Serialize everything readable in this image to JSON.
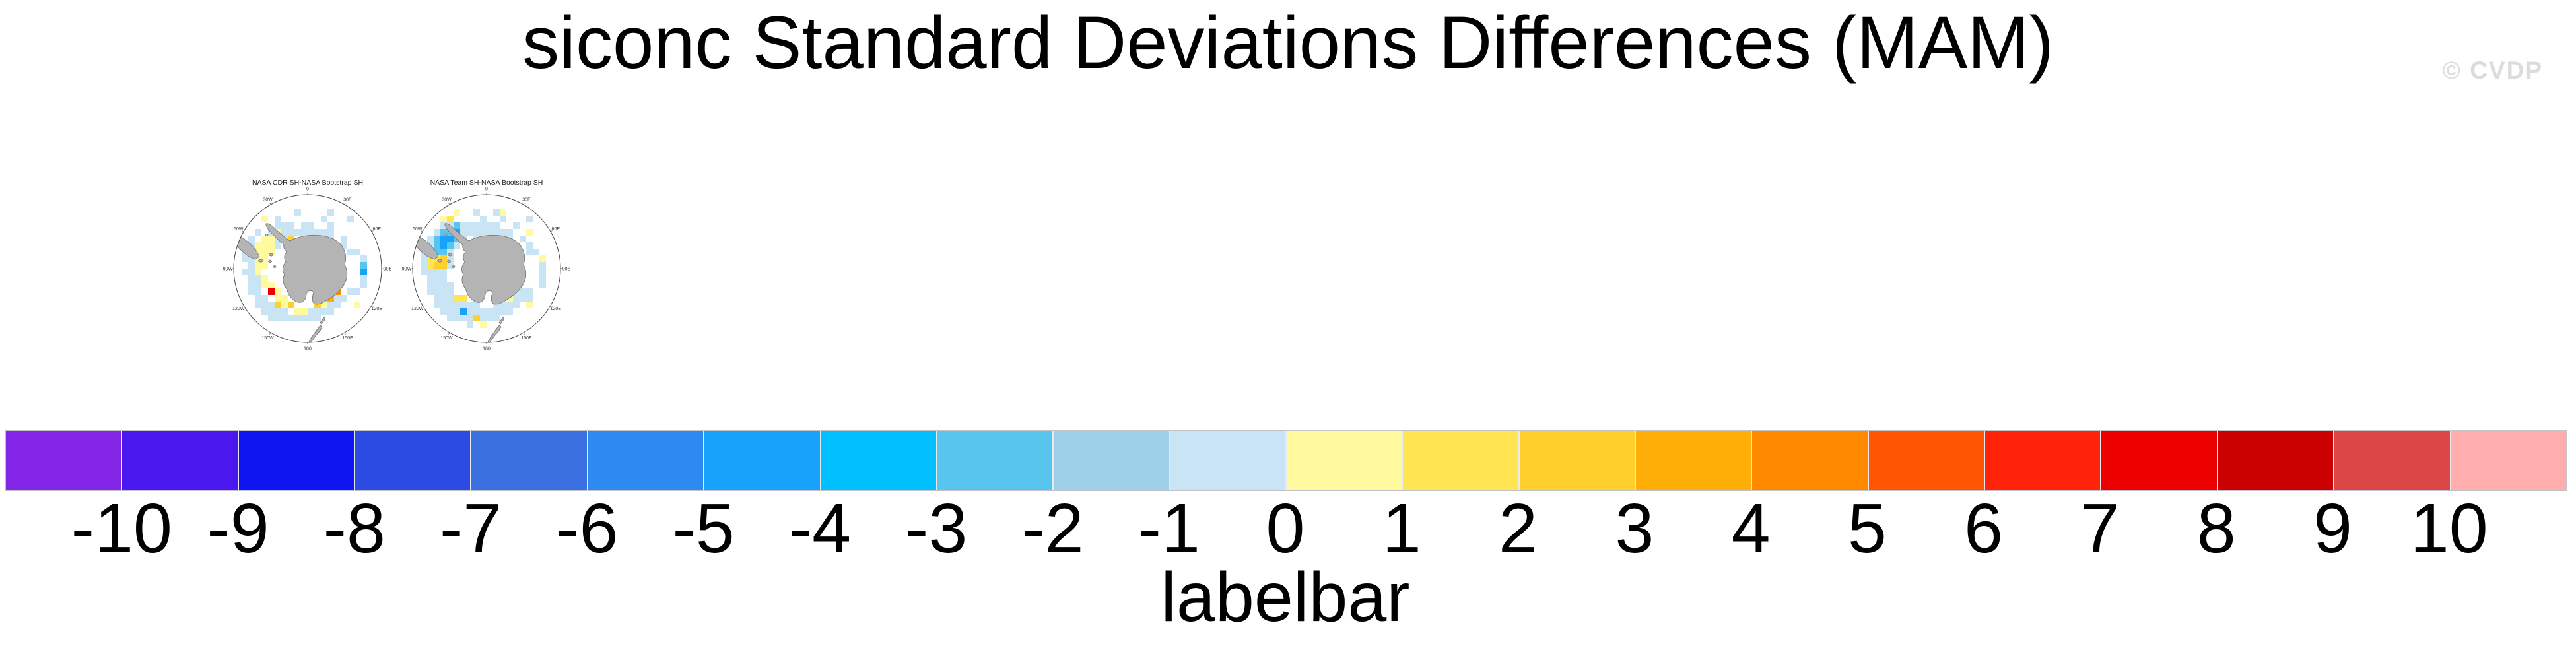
{
  "page": {
    "title": "siconc Standard Deviations Differences (MAM)",
    "watermark": "© CVDP"
  },
  "chart_data": {
    "type": "heatmap",
    "title": "siconc Standard Deviations Differences (MAM)",
    "season": "MAM",
    "variable": "siconc",
    "panels": [
      {
        "title": "NASA CDR SH-NASA Bootstrap SH",
        "projection": "south polar stereographic",
        "ring_labels": [
          "0",
          "30E",
          "60E",
          "90E",
          "120E",
          "150E",
          "180",
          "150W",
          "120W",
          "90W",
          "60W",
          "30W"
        ],
        "cells": [
          "......................",
          "......................",
          ".........b....b.......",
          "....y.b......b...b....",
          "......bbb.bb..b.......",
          "...b.bybbbbbbbb.......",
          "..b.yybbG..bRbb.b.....",
          "..byyyb.........b.....",
          ".bbyyy...........bb...",
          ".bbyy..............b..",
          "..byy..............s..",
          ".bby...............S..",
          "..bby..............b..",
          "..bbyy.............b..",
          "..bb.ry........O.bb...",
          "...bb.yy......obb.....",
          "...bbbGyG...Gybb..y...",
          "....bbbb.yybbbb.......",
          ".....bbbbbbbb.........",
          "......................",
          "......................",
          "......................"
        ]
      },
      {
        "title": "NASA Team SH-NASA Bootstrap SH",
        "projection": "south polar stereographic",
        "ring_labels": [
          "0",
          "30E",
          "60E",
          "90E",
          "120E",
          "150E",
          "180",
          "150W",
          "120W",
          "90W",
          "60W",
          "30W"
        ],
        "cells": [
          "......................",
          "......................",
          "......y..b..by........",
          "....yY....b..b...b....",
          "....bbsbbbbbb..b......",
          "...bssSbbbbbbbb..y....",
          "..bsSSsb.b.bObb.b.....",
          "..bsSsb..........b....",
          ".bbssb...........bb...",
          ".bYYGb.............y..",
          ".bYGGb.............b..",
          ".bbbb..............b..",
          "..bbb..............b..",
          "..bbbb.............b..",
          "..bbbb........bbbb....",
          "...bbbYY......ybbb....",
          "...bbbbbbb..bbbb.y....",
          "....bbbSbbbbbbb.......",
          ".....bbbbGbbb.........",
          "........b.y...........",
          "......................",
          "......................"
        ]
      }
    ],
    "palette": {
      "b": "#C9E4F5",
      "B": "#9DCFE8",
      "s": "#58C5EE",
      "S": "#17A3FB",
      "D": "#00C0FF",
      "y": "#FFFA9D",
      "Y": "#FFE552",
      "G": "#FFD02C",
      "o": "#FFAD07",
      "O": "#FF8A00",
      "R": "#FF5603",
      "r": "#EC0000"
    },
    "colorbar": {
      "label": "labelbar",
      "ticks": [
        "-10",
        "-9",
        "-8",
        "-7",
        "-6",
        "-5",
        "-4",
        "-3",
        "-2",
        "-1",
        "0",
        "1",
        "2",
        "3",
        "4",
        "5",
        "6",
        "7",
        "8",
        "9",
        "10"
      ],
      "levels": [
        -10,
        -9,
        -8,
        -7,
        -6,
        -5,
        -4,
        -3,
        -2,
        -1,
        0,
        1,
        2,
        3,
        4,
        5,
        6,
        7,
        8,
        9,
        10
      ],
      "colors": [
        "#8225E6",
        "#4A18EE",
        "#0E15F0",
        "#2C4BE2",
        "#3B70E0",
        "#2E89F0",
        "#17A3FB",
        "#00C0FF",
        "#58C5EE",
        "#9DCFE8",
        "#C9E4F5",
        "#FFFA9D",
        "#FFE552",
        "#FFD02C",
        "#FFAD07",
        "#FF8A00",
        "#FF5603",
        "#FF2409",
        "#EC0000",
        "#CB0000",
        "#DC4545",
        "#FFADAD"
      ],
      "legend_position": "bottom",
      "map_colors": {
        "land_fill": "#B4B4B4",
        "land_outline": "#6F6F6F",
        "circle_outline": "#444444"
      }
    }
  }
}
